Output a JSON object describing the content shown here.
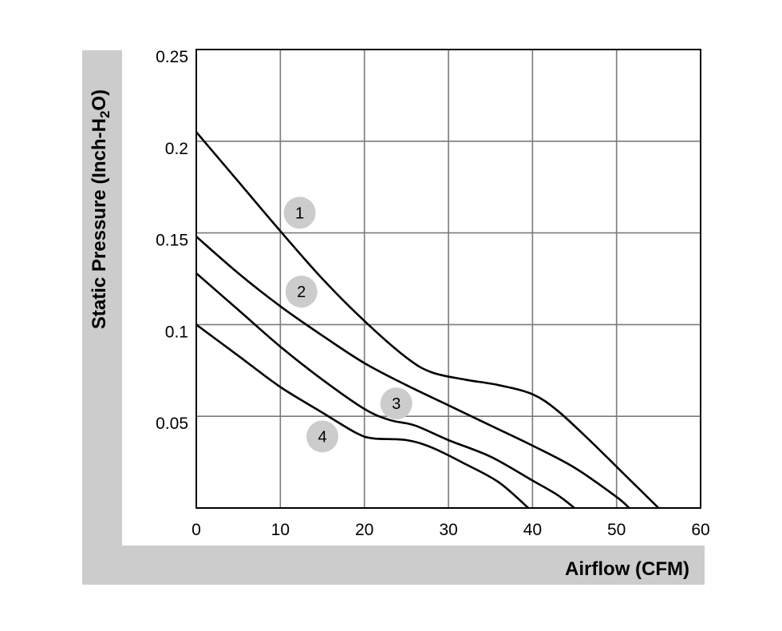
{
  "chart_data": {
    "type": "line",
    "xlabel": "Airflow (CFM)",
    "ylabel_parts": [
      "Static Pressure (Inch-H",
      "2",
      "O)"
    ],
    "xlim": [
      0,
      60
    ],
    "ylim": [
      0,
      0.25
    ],
    "x_ticks": [
      0,
      10,
      20,
      30,
      40,
      50,
      60
    ],
    "x_tick_labels": [
      "0",
      "10",
      "20",
      "30",
      "40",
      "50",
      "60"
    ],
    "y_ticks": [
      0.05,
      0.1,
      0.15,
      0.2,
      0.25
    ],
    "y_tick_labels": [
      "0.05",
      "0.1",
      "0.15",
      "0.2",
      "0.25"
    ],
    "grid": true,
    "frame_color": "#cccccc",
    "series": [
      {
        "marker_label": "1",
        "label_at": [
          12.3,
          0.161
        ],
        "points": [
          [
            0,
            0.205
          ],
          [
            5,
            0.178
          ],
          [
            10,
            0.151
          ],
          [
            15,
            0.125
          ],
          [
            20,
            0.102
          ],
          [
            25,
            0.082
          ],
          [
            28,
            0.074
          ],
          [
            32,
            0.07
          ],
          [
            36,
            0.067
          ],
          [
            40,
            0.062
          ],
          [
            43,
            0.053
          ],
          [
            47,
            0.036
          ],
          [
            51,
            0.018
          ],
          [
            55,
            0.0
          ]
        ]
      },
      {
        "marker_label": "2",
        "label_at": [
          12.5,
          0.118
        ],
        "points": [
          [
            0,
            0.148
          ],
          [
            5,
            0.128
          ],
          [
            10,
            0.11
          ],
          [
            15,
            0.094
          ],
          [
            20,
            0.079
          ],
          [
            25,
            0.067
          ],
          [
            30,
            0.056
          ],
          [
            35,
            0.045
          ],
          [
            40,
            0.034
          ],
          [
            45,
            0.022
          ],
          [
            50,
            0.006
          ],
          [
            51.5,
            0.0
          ]
        ]
      },
      {
        "marker_label": "3",
        "label_at": [
          23.8,
          0.057
        ],
        "points": [
          [
            0,
            0.128
          ],
          [
            5,
            0.108
          ],
          [
            10,
            0.088
          ],
          [
            15,
            0.07
          ],
          [
            20,
            0.054
          ],
          [
            23,
            0.048
          ],
          [
            26,
            0.045
          ],
          [
            30,
            0.037
          ],
          [
            35,
            0.028
          ],
          [
            40,
            0.015
          ],
          [
            43,
            0.007
          ],
          [
            45,
            0.0
          ]
        ]
      },
      {
        "marker_label": "4",
        "label_at": [
          15,
          0.039
        ],
        "points": [
          [
            0,
            0.1
          ],
          [
            5,
            0.083
          ],
          [
            10,
            0.066
          ],
          [
            15,
            0.052
          ],
          [
            19,
            0.041
          ],
          [
            21,
            0.038
          ],
          [
            25,
            0.037
          ],
          [
            28,
            0.033
          ],
          [
            32,
            0.024
          ],
          [
            36,
            0.014
          ],
          [
            39.5,
            0.0
          ]
        ]
      }
    ]
  }
}
